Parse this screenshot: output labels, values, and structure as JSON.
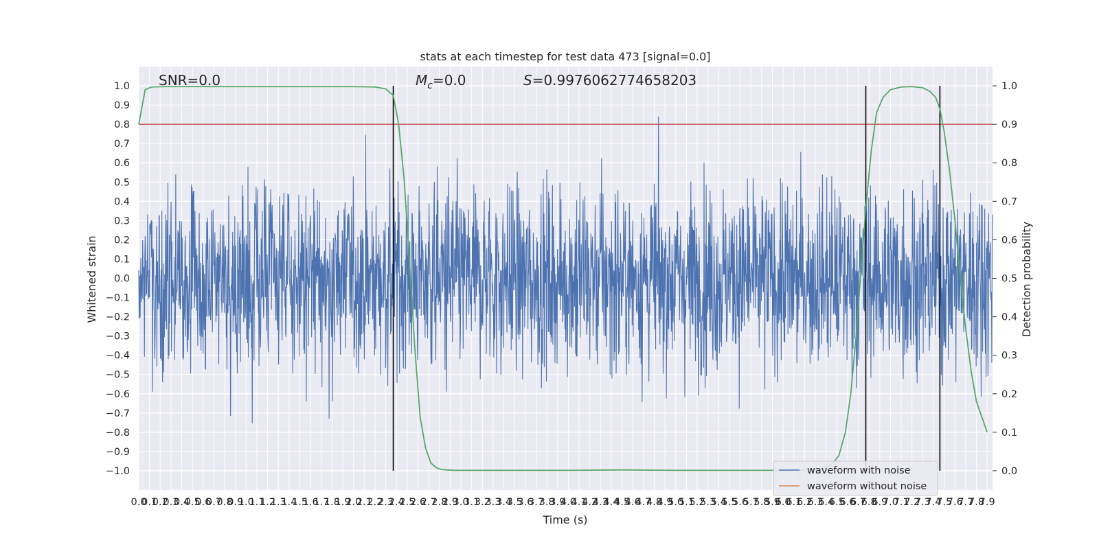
{
  "chart_data": {
    "type": "line",
    "title": "stats at each timestep for test data 473 [signal=0.0]",
    "xlabel": "Time (s)",
    "ylabel": "Whitened strain",
    "ylabel_right": "Detection probability",
    "xlim": [
      0.0,
      7.95
    ],
    "ylim": [
      -1.1,
      1.1
    ],
    "ylim_right": [
      -0.05,
      1.05
    ],
    "x_ticks": [
      "0.0",
      "0.1",
      "0.2",
      "0.3",
      "0.4",
      "0.5",
      "0.6",
      "0.7",
      "0.8",
      "0.9",
      "1.0",
      "1.1",
      "1.2",
      "1.3",
      "1.4",
      "1.5",
      "1.6",
      "1.7",
      "1.8",
      "1.9",
      "2.0",
      "2.1",
      "2.2",
      "2.3",
      "2.4",
      "2.5",
      "2.6",
      "2.7",
      "2.8",
      "2.9",
      "3.0",
      "3.1",
      "3.2",
      "3.3",
      "3.4",
      "3.5",
      "3.6",
      "3.7",
      "3.8",
      "3.9",
      "4.0",
      "4.1",
      "4.2",
      "4.3",
      "4.4",
      "4.5",
      "4.6",
      "4.7",
      "4.8",
      "4.9",
      "5.0",
      "5.1",
      "5.2",
      "5.3",
      "5.4",
      "5.5",
      "5.6",
      "5.7",
      "5.8",
      "5.9",
      "6.0",
      "6.1",
      "6.2",
      "6.3",
      "6.4",
      "6.5",
      "6.6",
      "6.7",
      "6.8",
      "6.9",
      "7.0",
      "7.1",
      "7.2",
      "7.3",
      "7.4",
      "7.5",
      "7.6",
      "7.7",
      "7.8",
      "7.9"
    ],
    "y_ticks": [
      "1.0",
      "0.9",
      "0.8",
      "0.7",
      "0.6",
      "0.5",
      "0.4",
      "0.3",
      "0.2",
      "0.1",
      "0.0",
      "−0.1",
      "−0.2",
      "−0.3",
      "−0.4",
      "−0.5",
      "−0.6",
      "−0.7",
      "−0.8",
      "−0.9",
      "−1.0"
    ],
    "y_ticks_right": [
      "1.0",
      "0.9",
      "0.8",
      "0.7",
      "0.6",
      "0.5",
      "0.4",
      "0.3",
      "0.2",
      "0.1",
      "0.0"
    ],
    "annotations": {
      "snr": "SNR=0.0",
      "mc_symbol": "M",
      "mc_subscript": "c",
      "mc_value": "=0.0",
      "s_symbol": "S",
      "s_value": "=0.9976062774658203"
    },
    "threshold": 0.9,
    "vertical_lines": [
      2.37,
      6.77,
      7.46
    ],
    "noise_amplitude": 0.45,
    "detection_probability": {
      "x": [
        0.0,
        0.06,
        0.12,
        0.25,
        0.5,
        1.0,
        1.5,
        2.0,
        2.2,
        2.3,
        2.37,
        2.42,
        2.47,
        2.52,
        2.57,
        2.62,
        2.67,
        2.72,
        2.77,
        2.82,
        2.87,
        2.95,
        3.1,
        3.5,
        4.0,
        4.5,
        5.0,
        5.5,
        6.0,
        6.2,
        6.35,
        6.45,
        6.52,
        6.58,
        6.63,
        6.68,
        6.72,
        6.77,
        6.82,
        6.87,
        6.93,
        7.0,
        7.1,
        7.2,
        7.3,
        7.37,
        7.42,
        7.46,
        7.5,
        7.55,
        7.6,
        7.65,
        7.7,
        7.75,
        7.8,
        7.85,
        7.9
      ],
      "y": [
        0.9,
        0.99,
        0.997,
        0.998,
        0.998,
        0.998,
        0.998,
        0.998,
        0.997,
        0.992,
        0.975,
        0.9,
        0.76,
        0.55,
        0.32,
        0.14,
        0.06,
        0.02,
        0.008,
        0.003,
        0.002,
        0.001,
        0.001,
        0.001,
        0.001,
        0.002,
        0.001,
        0.001,
        0.001,
        0.002,
        0.005,
        0.015,
        0.04,
        0.1,
        0.2,
        0.35,
        0.5,
        0.68,
        0.83,
        0.93,
        0.97,
        0.99,
        0.997,
        0.998,
        0.995,
        0.985,
        0.97,
        0.94,
        0.88,
        0.78,
        0.65,
        0.5,
        0.37,
        0.26,
        0.18,
        0.14,
        0.1
      ]
    },
    "series": [
      {
        "name": "waveform with noise",
        "color": "#4c72b0"
      },
      {
        "name": "waveform without noise",
        "color": "#dd8452"
      }
    ],
    "prob_color": "#55a868",
    "threshold_color": "#c44e52",
    "background_color": "#eaeaf2"
  }
}
